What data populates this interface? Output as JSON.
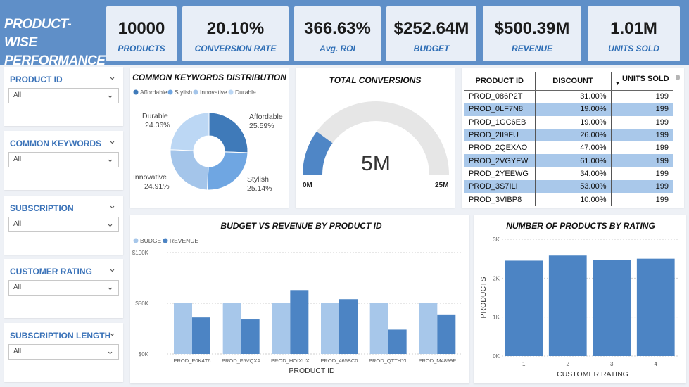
{
  "header": {
    "title_line1": "PRODUCT-WISE",
    "title_line2": "PERFORMANCE",
    "kpis": [
      {
        "value": "10000",
        "label": "PRODUCTS"
      },
      {
        "value": "20.10%",
        "label": "CONVERSION RATE"
      },
      {
        "value": "366.63%",
        "label": "Avg. ROI"
      },
      {
        "value": "$252.64M",
        "label": "BUDGET"
      },
      {
        "value": "$500.39M",
        "label": "REVENUE"
      },
      {
        "value": "1.01M",
        "label": "UNITS SOLD"
      }
    ]
  },
  "slicers": [
    {
      "title": "PRODUCT ID",
      "value": "All"
    },
    {
      "title": "COMMON KEYWORDS",
      "value": "All"
    },
    {
      "title": "SUBSCRIPTION",
      "value": "All"
    },
    {
      "title": "CUSTOMER RATING",
      "value": "All"
    },
    {
      "title": "SUBSCRIPTION LENGTH",
      "value": "All"
    }
  ],
  "icons": {
    "chevron": "chevron-down-icon"
  },
  "colors": {
    "header_bg": "#5f8fc8",
    "donut": [
      "#3f7ab9",
      "#6fa6e2",
      "#a4c5ea",
      "#bcd7f4"
    ],
    "budget": "#a7c7ea",
    "revenue": "#4c84c4",
    "rating_bar": "#4c84c4",
    "gauge_fill": "#4f86c6",
    "gauge_track": "#e6e6e6"
  },
  "donut": {
    "title": "COMMON KEYWORDS DISTRIBUTION",
    "legend": [
      "Affordable",
      "Stylish",
      "Innovative",
      "Durable"
    ],
    "labels": [
      {
        "name": "Affordable",
        "pct": "25.59%"
      },
      {
        "name": "Stylish",
        "pct": "25.14%"
      },
      {
        "name": "Innovative",
        "pct": "24.91%"
      },
      {
        "name": "Durable",
        "pct": "24.36%"
      }
    ]
  },
  "gauge": {
    "title": "TOTAL CONVERSIONS",
    "value_label": "5M",
    "min_label": "0M",
    "max_label": "25M"
  },
  "table": {
    "columns": [
      "PRODUCT ID",
      "DISCOUNT",
      "UNITS SOLD"
    ],
    "rows": [
      [
        "PROD_086P2T",
        "31.00%",
        "199"
      ],
      [
        "PROD_0LF7N8",
        "19.00%",
        "199"
      ],
      [
        "PROD_1GC6EB",
        "19.00%",
        "199"
      ],
      [
        "PROD_2II9FU",
        "26.00%",
        "199"
      ],
      [
        "PROD_2QEXAO",
        "47.00%",
        "199"
      ],
      [
        "PROD_2VGYFW",
        "61.00%",
        "199"
      ],
      [
        "PROD_2YEEWG",
        "34.00%",
        "199"
      ],
      [
        "PROD_3S7ILI",
        "53.00%",
        "199"
      ],
      [
        "PROD_3VIBP8",
        "10.00%",
        "199"
      ]
    ]
  },
  "chart_data": [
    {
      "type": "pie",
      "title": "COMMON KEYWORDS DISTRIBUTION",
      "categories": [
        "Affordable",
        "Stylish",
        "Innovative",
        "Durable"
      ],
      "values": [
        25.59,
        25.14,
        24.91,
        24.36
      ]
    },
    {
      "type": "gauge",
      "title": "TOTAL CONVERSIONS",
      "value": 5,
      "min": 0,
      "max": 25,
      "unit": "M"
    },
    {
      "type": "bar",
      "title": "BUDGET VS REVENUE BY PRODUCT ID",
      "xlabel": "PRODUCT ID",
      "ylabel": "",
      "categories": [
        "PROD_P0K4T6",
        "PROD_F5VQXA",
        "PROD_HOIXUX",
        "PROD_465BC0",
        "PROD_QTTHYL",
        "PROD_M4899P"
      ],
      "series": [
        {
          "name": "BUDGET",
          "values": [
            50000,
            50000,
            50000,
            50000,
            50000,
            50000
          ]
        },
        {
          "name": "REVENUE",
          "values": [
            36000,
            34000,
            63000,
            54000,
            24000,
            39000
          ]
        }
      ],
      "yticks": [
        "$0K",
        "$50K",
        "$100K"
      ],
      "ylim": [
        0,
        100000
      ]
    },
    {
      "type": "bar",
      "title": "NUMBER OF PRODUCTS BY RATING",
      "xlabel": "CUSTOMER RATING",
      "ylabel": "PRODUCTS",
      "categories": [
        "1",
        "2",
        "3",
        "4"
      ],
      "values": [
        2450,
        2580,
        2470,
        2500
      ],
      "yticks": [
        "0K",
        "1K",
        "2K",
        "3K"
      ],
      "ylim": [
        0,
        3000
      ]
    }
  ]
}
